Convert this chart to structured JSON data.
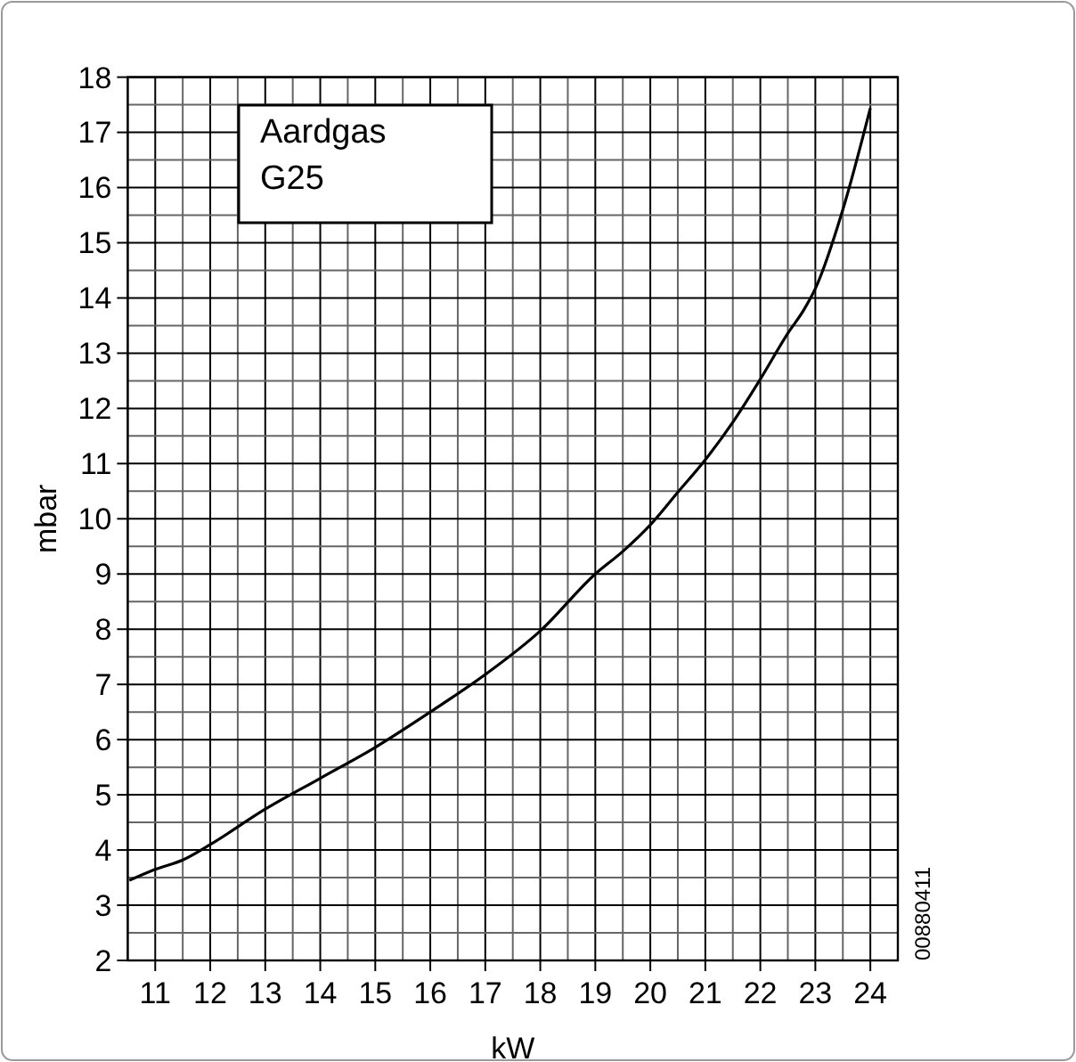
{
  "chart_data": {
    "type": "line",
    "xlabel": "kW",
    "ylabel": "mbar",
    "x": [
      10.53,
      11,
      11.5,
      12,
      13,
      14,
      15,
      16,
      17,
      18,
      19,
      19.5,
      20,
      20.5,
      21,
      21.5,
      22,
      22.5,
      22.8,
      23,
      23.5,
      24
    ],
    "series": [
      {
        "color": "#000000",
        "values": [
          3.45,
          3.65,
          3.82,
          4.1,
          4.74,
          5.3,
          5.86,
          6.5,
          7.18,
          7.97,
          9.0,
          9.41,
          9.89,
          10.48,
          11.07,
          11.75,
          12.53,
          13.36,
          13.8,
          14.17,
          15.6,
          17.44
        ]
      }
    ],
    "xlim": [
      10.5,
      24.5
    ],
    "ylim": [
      2,
      18
    ],
    "xticks": [
      {
        "value": 10.5,
        "label": null
      },
      11,
      {
        "value": 11.5,
        "label": null
      },
      12,
      {
        "value": 12.5,
        "label": null
      },
      13,
      {
        "value": 13.5,
        "label": null
      },
      14,
      {
        "value": 14.5,
        "label": null
      },
      15,
      {
        "value": 15.5,
        "label": null
      },
      16,
      {
        "value": 16.5,
        "label": null
      },
      17,
      {
        "value": 17.5,
        "label": null
      },
      18,
      {
        "value": 18.5,
        "label": null
      },
      19,
      {
        "value": 19.5,
        "label": null
      },
      20,
      {
        "value": 20.5,
        "label": null
      },
      21,
      {
        "value": 21.5,
        "label": null
      },
      22,
      {
        "value": 22.5,
        "label": null
      },
      23,
      {
        "value": 23.5,
        "label": null
      },
      24,
      {
        "value": 24.5,
        "label": null
      }
    ],
    "yticks": [
      2,
      {
        "value": 2.5,
        "label": null
      },
      3,
      {
        "value": 3.5,
        "label": null
      },
      4,
      {
        "value": 4.5,
        "label": null
      },
      5,
      {
        "value": 5.5,
        "label": null
      },
      6,
      {
        "value": 6.5,
        "label": null
      },
      7,
      {
        "value": 7.5,
        "label": null
      },
      8,
      {
        "value": 8.5,
        "label": null
      },
      9,
      {
        "value": 9.5,
        "label": null
      },
      10,
      {
        "value": 10.5,
        "label": null
      },
      11,
      {
        "value": 11.5,
        "label": null
      },
      12,
      {
        "value": 12.5,
        "label": null
      },
      13,
      {
        "value": 13.5,
        "label": null
      },
      14,
      {
        "value": 14.5,
        "label": null
      },
      15,
      {
        "value": 15.5,
        "label": null
      },
      16,
      {
        "value": 16.5,
        "label": null
      },
      17,
      {
        "value": 17.5,
        "label": null
      },
      18
    ],
    "grid": true,
    "marker": "none",
    "line_style": "solid",
    "annotations": [
      "Aardgas\nG25",
      "00880411"
    ]
  }
}
